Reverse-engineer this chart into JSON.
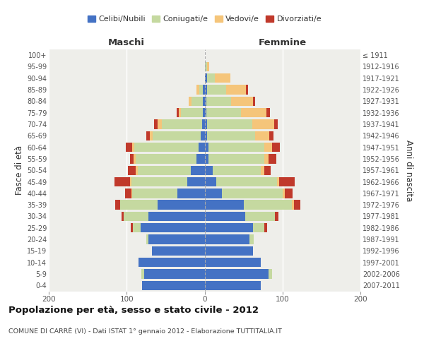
{
  "age_groups": [
    "0-4",
    "5-9",
    "10-14",
    "15-19",
    "20-24",
    "25-29",
    "30-34",
    "35-39",
    "40-44",
    "45-49",
    "50-54",
    "55-59",
    "60-64",
    "65-69",
    "70-74",
    "75-79",
    "80-84",
    "85-89",
    "90-94",
    "95-99",
    "100+"
  ],
  "birth_years": [
    "2007-2011",
    "2002-2006",
    "1997-2001",
    "1992-1996",
    "1987-1991",
    "1982-1986",
    "1977-1981",
    "1972-1976",
    "1967-1971",
    "1962-1966",
    "1957-1961",
    "1952-1956",
    "1947-1951",
    "1942-1946",
    "1937-1941",
    "1932-1936",
    "1927-1931",
    "1922-1926",
    "1917-1921",
    "1912-1916",
    "≤ 1911"
  ],
  "male": {
    "celibi": [
      80,
      78,
      85,
      68,
      72,
      82,
      72,
      60,
      35,
      22,
      18,
      10,
      8,
      5,
      3,
      2,
      2,
      2,
      0,
      0,
      0
    ],
    "coniugati": [
      0,
      3,
      0,
      0,
      3,
      10,
      32,
      48,
      58,
      72,
      68,
      78,
      82,
      62,
      52,
      28,
      15,
      5,
      0,
      0,
      0
    ],
    "vedovi": [
      0,
      0,
      0,
      0,
      0,
      0,
      0,
      0,
      1,
      2,
      2,
      3,
      3,
      3,
      5,
      3,
      3,
      3,
      0,
      0,
      0
    ],
    "divorziati": [
      0,
      0,
      0,
      0,
      0,
      3,
      3,
      7,
      8,
      20,
      10,
      5,
      8,
      5,
      5,
      3,
      0,
      0,
      0,
      0,
      0
    ]
  },
  "female": {
    "nubili": [
      72,
      82,
      72,
      62,
      58,
      62,
      52,
      50,
      22,
      15,
      10,
      5,
      5,
      3,
      3,
      2,
      2,
      3,
      3,
      0,
      0
    ],
    "coniugate": [
      0,
      5,
      0,
      0,
      5,
      15,
      38,
      62,
      78,
      78,
      62,
      72,
      72,
      62,
      58,
      45,
      32,
      25,
      10,
      3,
      0
    ],
    "vedove": [
      0,
      0,
      0,
      0,
      0,
      0,
      0,
      3,
      3,
      3,
      5,
      5,
      10,
      18,
      28,
      32,
      28,
      25,
      20,
      3,
      0
    ],
    "divorziate": [
      0,
      0,
      0,
      0,
      0,
      3,
      5,
      8,
      10,
      20,
      8,
      10,
      10,
      5,
      5,
      5,
      3,
      3,
      0,
      0,
      0
    ]
  },
  "colors": {
    "celibi_nubili": "#4472C4",
    "coniugati": "#C5D9A0",
    "vedovi": "#F5C57A",
    "divorziati": "#C0392B"
  },
  "xlim": 200,
  "title": "Popolazione per età, sesso e stato civile - 2012",
  "subtitle": "COMUNE DI CARRÈ (VI) - Dati ISTAT 1° gennaio 2012 - Elaborazione TUTTITALIA.IT",
  "ylabel_left": "Fasce di età",
  "ylabel_right": "Anni di nascita",
  "xlabel_left": "Maschi",
  "xlabel_right": "Femmine",
  "legend_labels": [
    "Celibi/Nubili",
    "Coniugati/e",
    "Vedovi/e",
    "Divorziati/e"
  ],
  "background_color": "#eeeeea",
  "bar_height": 0.82
}
